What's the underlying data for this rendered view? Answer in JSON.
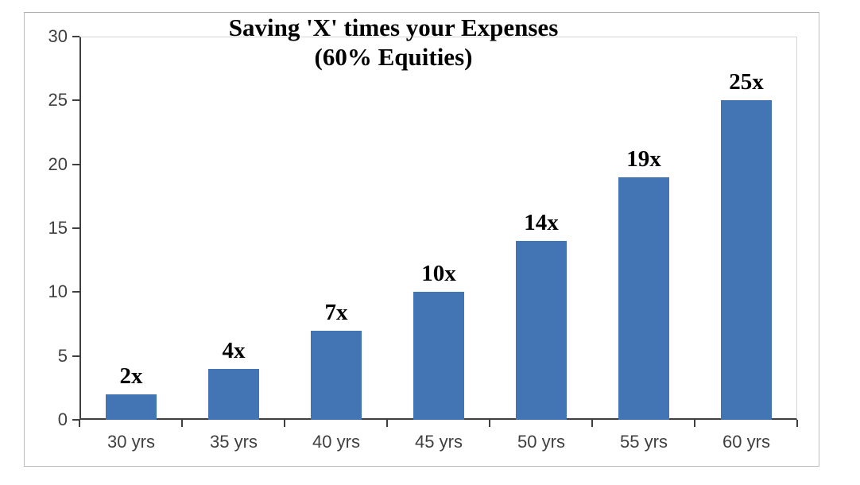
{
  "chart_data": {
    "type": "bar",
    "title": "Saving 'X' times your Expenses",
    "subtitle": "(60% Equities)",
    "categories": [
      "30 yrs",
      "35 yrs",
      "40 yrs",
      "45 yrs",
      "50 yrs",
      "55 yrs",
      "60 yrs"
    ],
    "values": [
      2,
      4,
      7,
      10,
      14,
      19,
      25
    ],
    "data_labels": [
      "2x",
      "4x",
      "7x",
      "10x",
      "14x",
      "19x",
      "25x"
    ],
    "xlabel": "",
    "ylabel": "",
    "ylim": [
      0,
      30
    ],
    "y_ticks": [
      0,
      5,
      10,
      15,
      20,
      25,
      30
    ],
    "grid": "off",
    "legend": "none",
    "bar_color": "#4375b4",
    "axis_color": "#3f3f3f",
    "plot_border_color": "#d6d6d6",
    "frame_border_color": "#bdbdbd"
  }
}
